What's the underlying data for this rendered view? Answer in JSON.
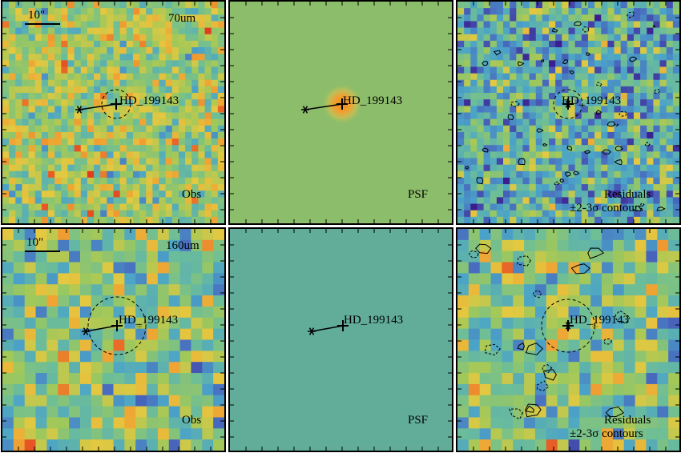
{
  "figure": {
    "source_name": "HD_199143",
    "scale_bar_label": "10\"",
    "rows": [
      {
        "band": "70um",
        "panels": [
          {
            "kind": "obs",
            "label": "Obs",
            "palette": "obs70"
          },
          {
            "kind": "psf",
            "label": "PSF",
            "palette": "psf70"
          },
          {
            "kind": "residual",
            "label_line1": "Residuals",
            "label_line2": "±2-3σ contours",
            "palette": "res70"
          }
        ]
      },
      {
        "band": "160um",
        "panels": [
          {
            "kind": "obs",
            "label": "Obs",
            "palette": "obs160"
          },
          {
            "kind": "psf",
            "label": "PSF",
            "palette": "psf160"
          },
          {
            "kind": "residual",
            "label_line1": "Residuals",
            "label_line2": "±2-3σ contours",
            "palette": "res160"
          }
        ]
      }
    ],
    "colors": {
      "psf70_bg": "#8cbd6a",
      "psf70_core": "#f0a030",
      "psf160_bg": "#62ad9a",
      "low": "#3b1d8f",
      "mid_low": "#4f86c6",
      "mid": "#8cc063",
      "mid_high": "#e6c840",
      "high": "#e23b1f"
    }
  }
}
